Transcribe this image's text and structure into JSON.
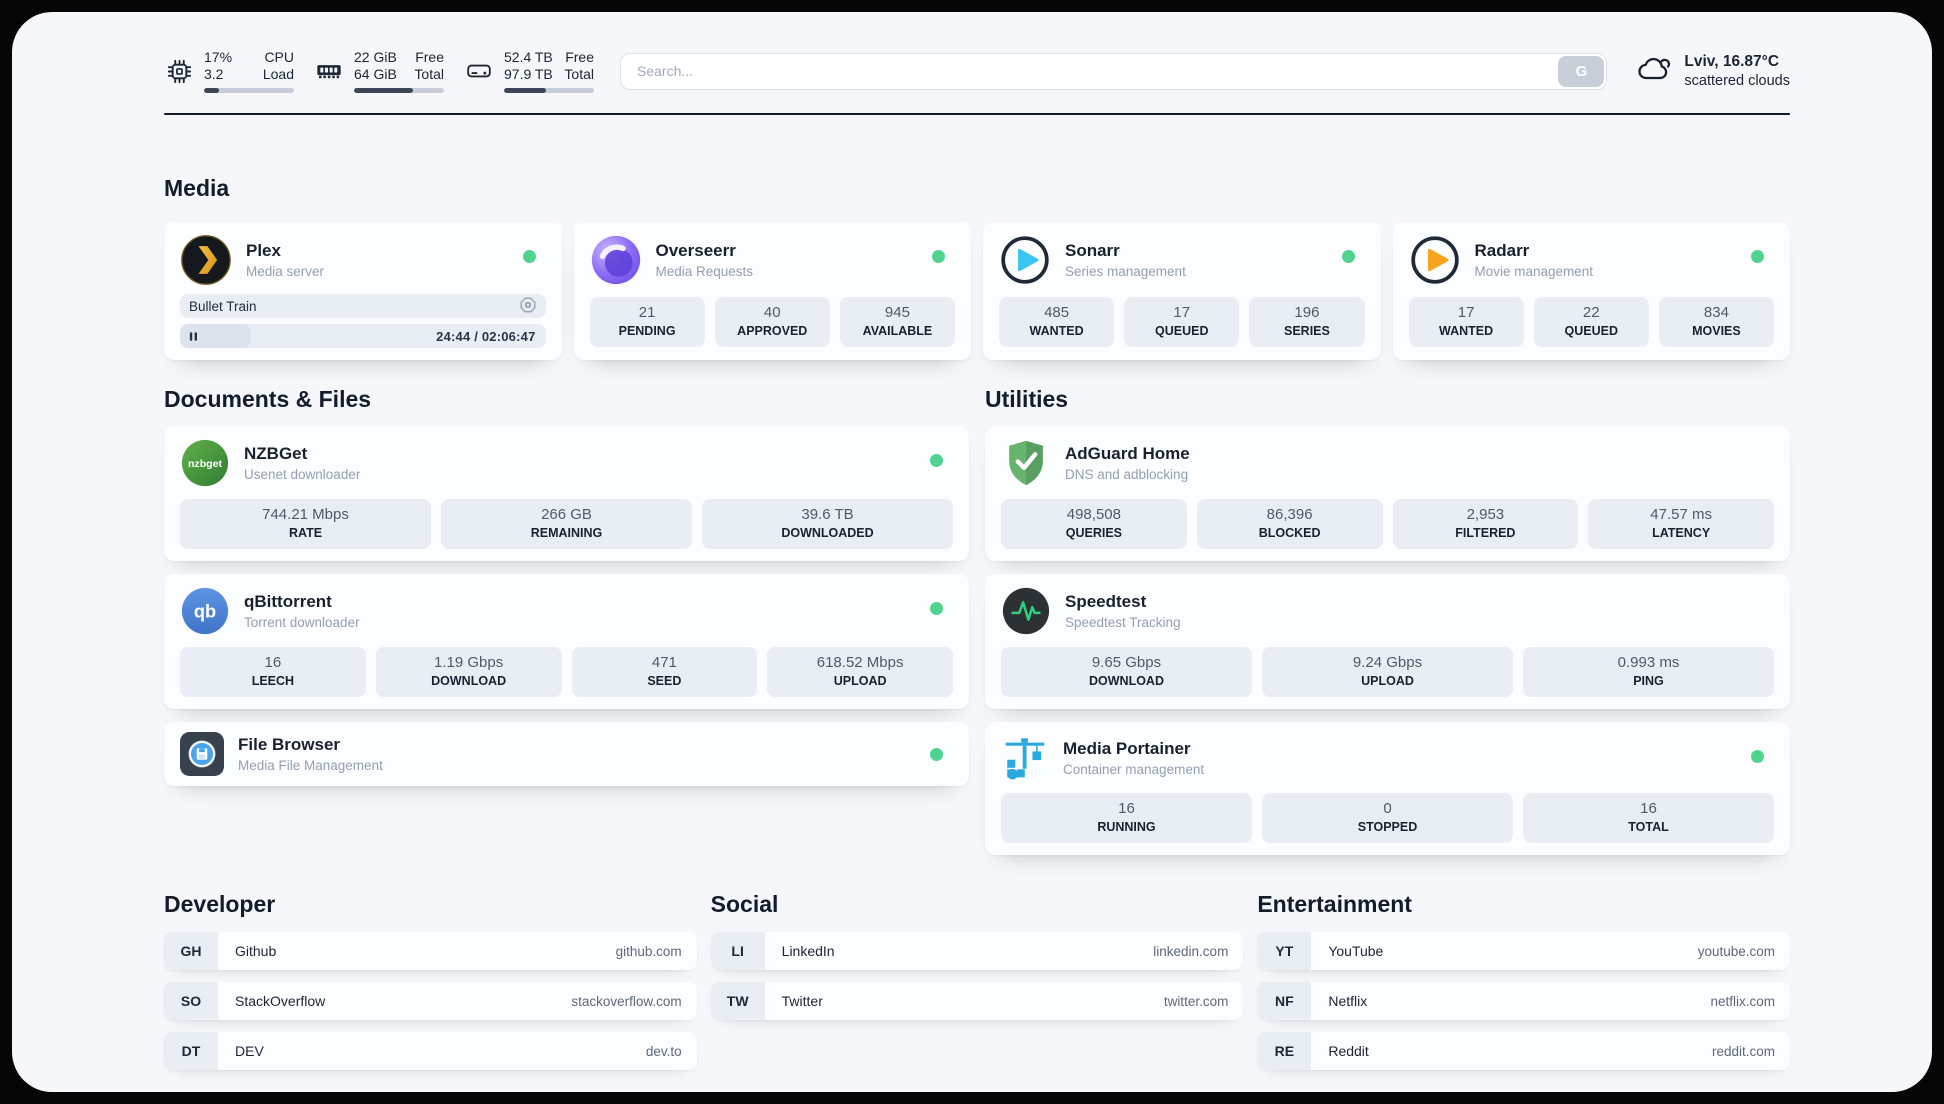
{
  "colors": {
    "page_background": "#060606",
    "panel_background": "#f5f7fa",
    "card_background": "#fcfdff",
    "tile_background": "#e9eef5",
    "status_online": "#4fd38f",
    "text_primary": "#1b2534",
    "text_secondary": "#93a0b1",
    "bar_fill": "#3c4656",
    "bar_track": "#c7cdd8"
  },
  "header": {
    "resources": [
      {
        "icon": "cpu-icon",
        "rows": [
          {
            "value": "17%",
            "label": "CPU"
          },
          {
            "value": "3.2",
            "label": "Load"
          }
        ],
        "progress_pct": 17
      },
      {
        "icon": "ram-icon",
        "rows": [
          {
            "value": "22 GiB",
            "label": "Free"
          },
          {
            "value": "64 GiB",
            "label": "Total"
          }
        ],
        "progress_pct": 66
      },
      {
        "icon": "disk-icon",
        "rows": [
          {
            "value": "52.4 TB",
            "label": "Free"
          },
          {
            "value": "97.9 TB",
            "label": "Total"
          }
        ],
        "progress_pct": 46.5
      }
    ],
    "search": {
      "placeholder": "Search...",
      "button": "G"
    },
    "weather": {
      "icon": "cloud-icon",
      "location": "Lviv, 16.87°C",
      "condition": "scattered clouds"
    }
  },
  "media": {
    "title": "Media",
    "cards": [
      {
        "icon": "plex-icon",
        "name": "Plex",
        "subtitle": "Media server",
        "status": "online",
        "now_playing": {
          "title": "Bullet Train",
          "time": "24:44 / 02:06:47",
          "progress_pct": 19.5
        }
      },
      {
        "icon": "overseerr-icon",
        "name": "Overseerr",
        "subtitle": "Media Requests",
        "status": "online",
        "stats": [
          {
            "value": "21",
            "label": "PENDING"
          },
          {
            "value": "40",
            "label": "APPROVED"
          },
          {
            "value": "945",
            "label": "AVAILABLE"
          }
        ]
      },
      {
        "icon": "sonarr-icon",
        "name": "Sonarr",
        "subtitle": "Series management",
        "status": "online",
        "stats": [
          {
            "value": "485",
            "label": "WANTED"
          },
          {
            "value": "17",
            "label": "QUEUED"
          },
          {
            "value": "196",
            "label": "SERIES"
          }
        ]
      },
      {
        "icon": "radarr-icon",
        "name": "Radarr",
        "subtitle": "Movie management",
        "status": "online",
        "stats": [
          {
            "value": "17",
            "label": "WANTED"
          },
          {
            "value": "22",
            "label": "QUEUED"
          },
          {
            "value": "834",
            "label": "MOVIES"
          }
        ]
      }
    ]
  },
  "documents": {
    "title": "Documents & Files",
    "cards": [
      {
        "icon": "nzbget-icon",
        "name": "NZBGet",
        "subtitle": "Usenet downloader",
        "status": "online",
        "stats": [
          {
            "value": "744.21 Mbps",
            "label": "RATE"
          },
          {
            "value": "266 GB",
            "label": "REMAINING"
          },
          {
            "value": "39.6 TB",
            "label": "DOWNLOADED"
          }
        ]
      },
      {
        "icon": "qbittorrent-icon",
        "name": "qBittorrent",
        "subtitle": "Torrent downloader",
        "status": "online",
        "stats": [
          {
            "value": "16",
            "label": "LEECH"
          },
          {
            "value": "1.19 Gbps",
            "label": "DOWNLOAD"
          },
          {
            "value": "471",
            "label": "SEED"
          },
          {
            "value": "618.52 Mbps",
            "label": "UPLOAD"
          }
        ]
      },
      {
        "icon": "filebrowser-icon",
        "name": "File Browser",
        "subtitle": "Media File Management",
        "status": "online"
      }
    ]
  },
  "utilities": {
    "title": "Utilities",
    "cards": [
      {
        "icon": "adguard-icon",
        "name": "AdGuard Home",
        "subtitle": "DNS and adblocking",
        "stats": [
          {
            "value": "498,508",
            "label": "QUERIES"
          },
          {
            "value": "86,396",
            "label": "BLOCKED"
          },
          {
            "value": "2,953",
            "label": "FILTERED"
          },
          {
            "value": "47.57 ms",
            "label": "LATENCY"
          }
        ]
      },
      {
        "icon": "speedtest-icon",
        "name": "Speedtest",
        "subtitle": "Speedtest Tracking",
        "stats": [
          {
            "value": "9.65 Gbps",
            "label": "DOWNLOAD"
          },
          {
            "value": "9.24 Gbps",
            "label": "UPLOAD"
          },
          {
            "value": "0.993 ms",
            "label": "PING"
          }
        ]
      },
      {
        "icon": "portainer-icon",
        "name": "Media Portainer",
        "subtitle": "Container management",
        "status": "online",
        "stats": [
          {
            "value": "16",
            "label": "RUNNING"
          },
          {
            "value": "0",
            "label": "STOPPED"
          },
          {
            "value": "16",
            "label": "TOTAL"
          }
        ]
      }
    ]
  },
  "bookmarks": [
    {
      "title": "Developer",
      "items": [
        {
          "abbr": "GH",
          "name": "Github",
          "url": "github.com"
        },
        {
          "abbr": "SO",
          "name": "StackOverflow",
          "url": "stackoverflow.com"
        },
        {
          "abbr": "DT",
          "name": "DEV",
          "url": "dev.to"
        }
      ]
    },
    {
      "title": "Social",
      "items": [
        {
          "abbr": "LI",
          "name": "LinkedIn",
          "url": "linkedin.com"
        },
        {
          "abbr": "TW",
          "name": "Twitter",
          "url": "twitter.com"
        }
      ]
    },
    {
      "title": "Entertainment",
      "items": [
        {
          "abbr": "YT",
          "name": "YouTube",
          "url": "youtube.com"
        },
        {
          "abbr": "NF",
          "name": "Netflix",
          "url": "netflix.com"
        },
        {
          "abbr": "RE",
          "name": "Reddit",
          "url": "reddit.com"
        }
      ]
    }
  ]
}
